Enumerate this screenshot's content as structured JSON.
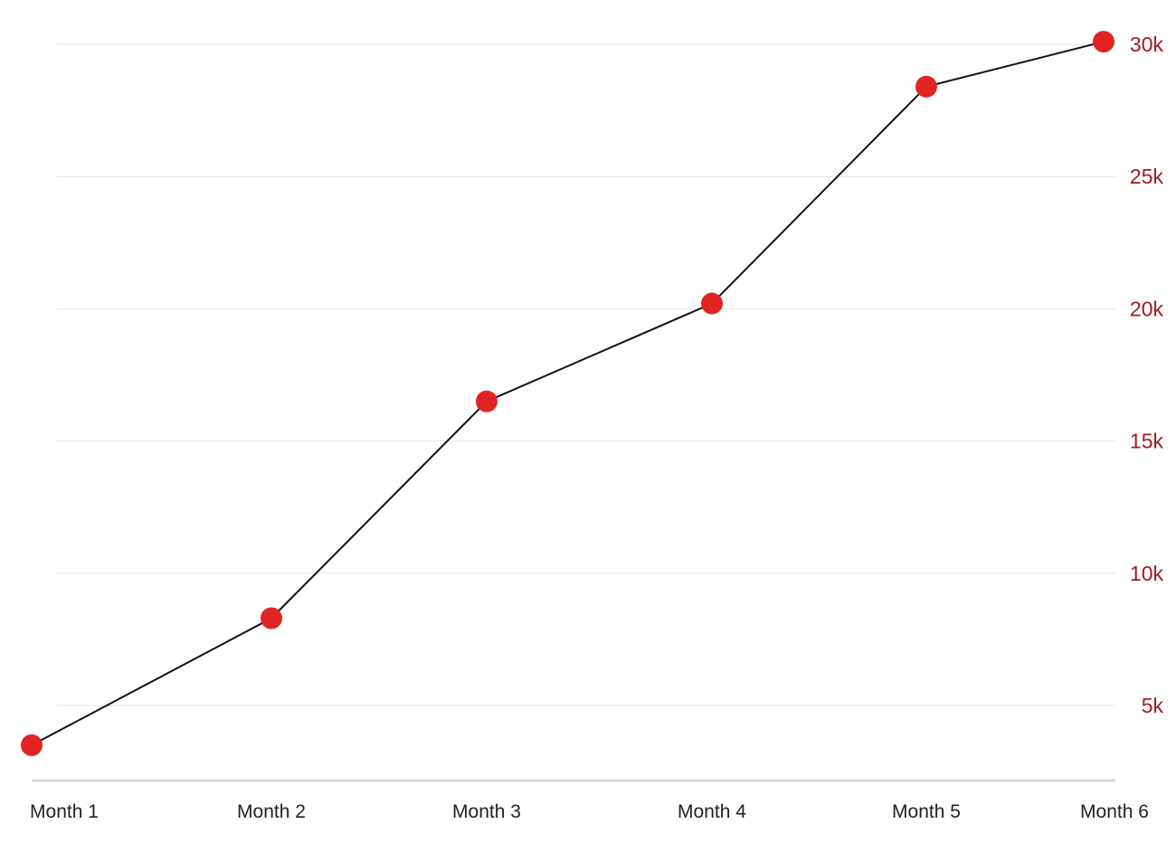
{
  "chart_data": {
    "type": "line",
    "title": "",
    "xlabel": "",
    "ylabel": "",
    "categories": [
      "Month 1",
      "Month 2",
      "Month 3",
      "Month 4",
      "Month 5",
      "Month 6"
    ],
    "series": [
      {
        "values": [
          3500,
          8300,
          16500,
          20200,
          28400,
          30100
        ]
      }
    ],
    "ylim": [
      2500,
      30300
    ],
    "yticks": [
      5000,
      10000,
      15000,
      20000,
      25000,
      30000
    ],
    "ytick_labels": [
      "5k",
      "10k",
      "15k",
      "20k",
      "25k",
      "30k"
    ],
    "y_axis_side": "right",
    "grid": true,
    "legend": "none",
    "colors": {
      "line": "#111111",
      "marker": "#e02424",
      "ytick_label": "#9b1c1c",
      "grid": "#e4e4e4"
    }
  }
}
